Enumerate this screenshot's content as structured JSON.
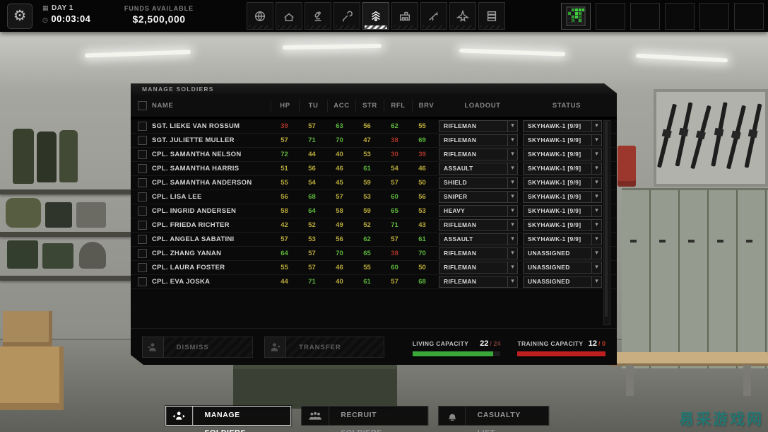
{
  "top_bar": {
    "day_label": "DAY 1",
    "time": "00:03:04",
    "funds_label": "FUNDS AVAILABLE",
    "funds_value": "$2,500,000",
    "nav_items": [
      {
        "id": "geoscape",
        "icon": "globe-icon",
        "active": false
      },
      {
        "id": "base",
        "icon": "base-icon",
        "active": false
      },
      {
        "id": "research",
        "icon": "microscope-icon",
        "active": false
      },
      {
        "id": "engineering",
        "icon": "wrench-icon",
        "active": false
      },
      {
        "id": "soldiers",
        "icon": "rank-chevrons-icon",
        "active": true
      },
      {
        "id": "facilities",
        "icon": "warehouse-icon",
        "active": false
      },
      {
        "id": "armory",
        "icon": "rifle-icon",
        "active": false
      },
      {
        "id": "aircraft",
        "icon": "jet-icon",
        "active": false
      },
      {
        "id": "stores",
        "icon": "storage-rack-icon",
        "active": false
      }
    ],
    "base_slots": {
      "filled": 1,
      "empty": 5
    }
  },
  "panel": {
    "title": "MANAGE SOLDIERS",
    "columns": [
      "NAME",
      "HP",
      "TU",
      "ACC",
      "STR",
      "RFL",
      "BRV",
      "LOADOUT",
      "STATUS"
    ],
    "soldiers": [
      {
        "name": "SGT. LIEKE VAN ROSSUM",
        "stats": [
          {
            "v": 39,
            "c": "red"
          },
          {
            "v": 57,
            "c": "yellow"
          },
          {
            "v": 63,
            "c": "green"
          },
          {
            "v": 56,
            "c": "yellow"
          },
          {
            "v": 62,
            "c": "green"
          },
          {
            "v": 55,
            "c": "yellow"
          }
        ],
        "loadout": "RIFLEMAN",
        "status": "SKYHAWK-1 [9/9]"
      },
      {
        "name": "SGT. JULIETTE MULLER",
        "stats": [
          {
            "v": 57,
            "c": "yellow"
          },
          {
            "v": 71,
            "c": "green"
          },
          {
            "v": 70,
            "c": "green"
          },
          {
            "v": 47,
            "c": "yellow"
          },
          {
            "v": 38,
            "c": "red"
          },
          {
            "v": 69,
            "c": "green"
          }
        ],
        "loadout": "RIFLEMAN",
        "status": "SKYHAWK-1 [9/9]"
      },
      {
        "name": "CPL. SAMANTHA NELSON",
        "stats": [
          {
            "v": 72,
            "c": "green"
          },
          {
            "v": 44,
            "c": "yellow"
          },
          {
            "v": 40,
            "c": "yellow"
          },
          {
            "v": 53,
            "c": "yellow"
          },
          {
            "v": 30,
            "c": "red"
          },
          {
            "v": 39,
            "c": "red"
          }
        ],
        "loadout": "RIFLEMAN",
        "status": "SKYHAWK-1 [9/9]"
      },
      {
        "name": "CPL. SAMANTHA HARRIS",
        "stats": [
          {
            "v": 51,
            "c": "yellow"
          },
          {
            "v": 56,
            "c": "yellow"
          },
          {
            "v": 46,
            "c": "yellow"
          },
          {
            "v": 61,
            "c": "green"
          },
          {
            "v": 54,
            "c": "yellow"
          },
          {
            "v": 46,
            "c": "yellow"
          }
        ],
        "loadout": "ASSAULT",
        "status": "SKYHAWK-1 [9/9]"
      },
      {
        "name": "CPL. SAMANTHA ANDERSON",
        "stats": [
          {
            "v": 55,
            "c": "yellow"
          },
          {
            "v": 54,
            "c": "yellow"
          },
          {
            "v": 45,
            "c": "yellow"
          },
          {
            "v": 59,
            "c": "yellow"
          },
          {
            "v": 57,
            "c": "yellow"
          },
          {
            "v": 50,
            "c": "yellow"
          }
        ],
        "loadout": "SHIELD",
        "status": "SKYHAWK-1 [9/9]"
      },
      {
        "name": "CPL. LISA LEE",
        "stats": [
          {
            "v": 56,
            "c": "yellow"
          },
          {
            "v": 68,
            "c": "green"
          },
          {
            "v": 57,
            "c": "yellow"
          },
          {
            "v": 53,
            "c": "yellow"
          },
          {
            "v": 60,
            "c": "green"
          },
          {
            "v": 56,
            "c": "yellow"
          }
        ],
        "loadout": "SNIPER",
        "status": "SKYHAWK-1 [9/9]"
      },
      {
        "name": "CPL. INGRID ANDERSEN",
        "stats": [
          {
            "v": 58,
            "c": "yellow"
          },
          {
            "v": 64,
            "c": "green"
          },
          {
            "v": 58,
            "c": "yellow"
          },
          {
            "v": 59,
            "c": "yellow"
          },
          {
            "v": 65,
            "c": "green"
          },
          {
            "v": 53,
            "c": "yellow"
          }
        ],
        "loadout": "HEAVY",
        "status": "SKYHAWK-1 [9/9]"
      },
      {
        "name": "CPL. FRIEDA RICHTER",
        "stats": [
          {
            "v": 42,
            "c": "yellow"
          },
          {
            "v": 52,
            "c": "yellow"
          },
          {
            "v": 49,
            "c": "yellow"
          },
          {
            "v": 52,
            "c": "yellow"
          },
          {
            "v": 71,
            "c": "green"
          },
          {
            "v": 43,
            "c": "yellow"
          }
        ],
        "loadout": "RIFLEMAN",
        "status": "SKYHAWK-1 [9/9]"
      },
      {
        "name": "CPL. ANGELA SABATINI",
        "stats": [
          {
            "v": 57,
            "c": "yellow"
          },
          {
            "v": 53,
            "c": "yellow"
          },
          {
            "v": 56,
            "c": "yellow"
          },
          {
            "v": 62,
            "c": "green"
          },
          {
            "v": 57,
            "c": "yellow"
          },
          {
            "v": 61,
            "c": "green"
          }
        ],
        "loadout": "ASSAULT",
        "status": "SKYHAWK-1 [9/9]"
      },
      {
        "name": "CPL. ZHANG YANAN",
        "stats": [
          {
            "v": 64,
            "c": "green"
          },
          {
            "v": 57,
            "c": "yellow"
          },
          {
            "v": 70,
            "c": "green"
          },
          {
            "v": 65,
            "c": "green"
          },
          {
            "v": 38,
            "c": "red"
          },
          {
            "v": 70,
            "c": "green"
          }
        ],
        "loadout": "RIFLEMAN",
        "status": "UNASSIGNED"
      },
      {
        "name": "CPL. LAURA FOSTER",
        "stats": [
          {
            "v": 55,
            "c": "yellow"
          },
          {
            "v": 57,
            "c": "yellow"
          },
          {
            "v": 46,
            "c": "yellow"
          },
          {
            "v": 55,
            "c": "yellow"
          },
          {
            "v": 60,
            "c": "green"
          },
          {
            "v": 50,
            "c": "yellow"
          }
        ],
        "loadout": "RIFLEMAN",
        "status": "UNASSIGNED"
      },
      {
        "name": "CPL. EVA JOSKA",
        "stats": [
          {
            "v": 44,
            "c": "yellow"
          },
          {
            "v": 71,
            "c": "green"
          },
          {
            "v": 40,
            "c": "yellow"
          },
          {
            "v": 61,
            "c": "green"
          },
          {
            "v": 57,
            "c": "yellow"
          },
          {
            "v": 68,
            "c": "green"
          }
        ],
        "loadout": "RIFLEMAN",
        "status": "UNASSIGNED"
      }
    ],
    "footer": {
      "dismiss_label": "DISMISS SOLDIERS",
      "transfer_label": "TRANSFER SOLDIERS",
      "living_capacity": {
        "label": "LIVING CAPACITY",
        "current": "22",
        "suffix": "/ 24",
        "fill_pct": 92,
        "bar_color": "#3aa838"
      },
      "training_capacity": {
        "label": "TRAINING CAPACITY",
        "current": "12",
        "suffix": "/ 0",
        "fill_pct": 100,
        "bar_color": "#c01f1f"
      }
    }
  },
  "bottom_nav": [
    {
      "label": "MANAGE SOLDIERS",
      "active": true
    },
    {
      "label": "RECRUIT SOLDIERS",
      "active": false
    },
    {
      "label": "CASUALTY LIST",
      "active": false
    }
  ],
  "watermark": "易采游戏网",
  "colors": {
    "stat_green": "#5cb53c",
    "stat_yellow": "#b9a93b",
    "stat_red": "#a83428",
    "capacity_green": "#3aa838",
    "capacity_red": "#c01f1f",
    "minimap_green": "#3ecf3e"
  }
}
